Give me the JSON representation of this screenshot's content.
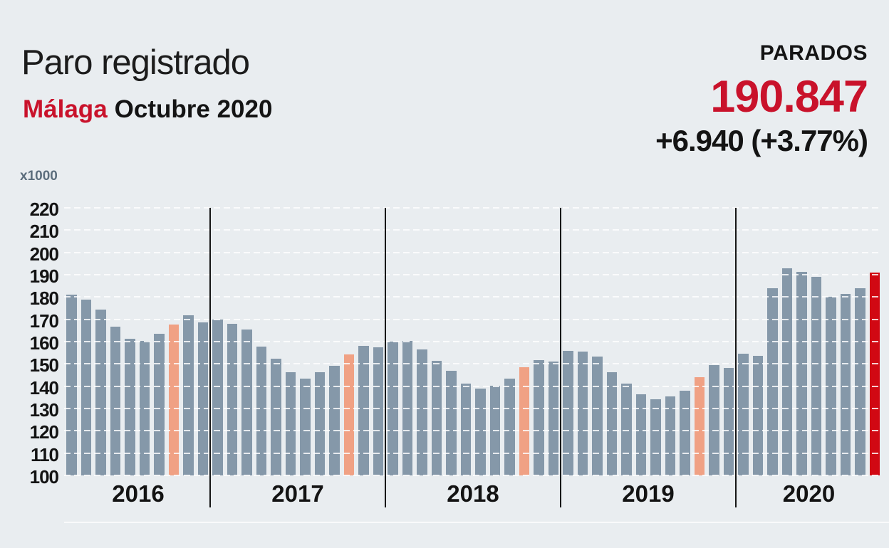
{
  "header": {
    "title": "Paro registrado",
    "region": "Málaga",
    "period": "Octubre 2020",
    "stat_label": "PARADOS",
    "stat_value": "190.847",
    "stat_change": "+6.940 (+3.77%)"
  },
  "colors": {
    "background": "#e9edf0",
    "bar_gray": "#8598a9",
    "bar_orange": "#f0a184",
    "bar_red": "#d10813",
    "text_red": "#c9122b",
    "text_dark": "#141414",
    "unit_label": "#5c6e7d",
    "gridline": "#ffffff",
    "separator": "#151515"
  },
  "chart_data": {
    "type": "bar",
    "title": "Paro registrado Málaga - Octubre 2020",
    "ylabel": "x1000",
    "unit": "thousands of registered unemployed",
    "ylim": [
      100,
      220
    ],
    "ytick_interval": 10,
    "yticks": [
      220,
      210,
      200,
      190,
      180,
      170,
      160,
      150,
      140,
      130,
      120,
      110,
      100
    ],
    "grid": "horizontal-dashed-white",
    "highlight_note": "October of each year highlighted; October 2020 in red",
    "month_keys": [
      "ene",
      "feb",
      "mar",
      "abr",
      "may",
      "jun",
      "jul",
      "ago",
      "sep",
      "oct",
      "nov",
      "dic"
    ],
    "groups": [
      {
        "year": "2016",
        "first_month": 3,
        "values": [
          181.0,
          178.8,
          174.4,
          166.6,
          161.3,
          160.2,
          163.4,
          167.7,
          171.9,
          168.5
        ],
        "highlight_index": 7,
        "highlight_color": "orange"
      },
      {
        "year": "2017",
        "first_month": 1,
        "values": [
          169.8,
          168.1,
          165.3,
          157.7,
          152.3,
          146.2,
          143.3,
          146.2,
          149.1,
          154.2,
          158.2,
          157.5
        ],
        "highlight_index": 9,
        "highlight_color": "orange"
      },
      {
        "year": "2018",
        "first_month": 1,
        "values": [
          160.0,
          160.2,
          156.5,
          151.5,
          147.0,
          141.1,
          139.0,
          140.3,
          143.5,
          148.5,
          151.8,
          151.2
        ],
        "highlight_index": 9,
        "highlight_color": "orange"
      },
      {
        "year": "2019",
        "first_month": 1,
        "values": [
          156.0,
          155.5,
          153.3,
          146.4,
          141.1,
          136.3,
          134.2,
          135.5,
          137.9,
          144.0,
          149.6,
          148.1
        ],
        "highlight_index": 9,
        "highlight_color": "orange"
      },
      {
        "year": "2020",
        "first_month": 1,
        "values": [
          154.7,
          153.6,
          183.9,
          193.0,
          191.2,
          189.1,
          180.2,
          181.3,
          183.9,
          190.8
        ],
        "highlight_index": 9,
        "highlight_color": "red"
      }
    ]
  }
}
